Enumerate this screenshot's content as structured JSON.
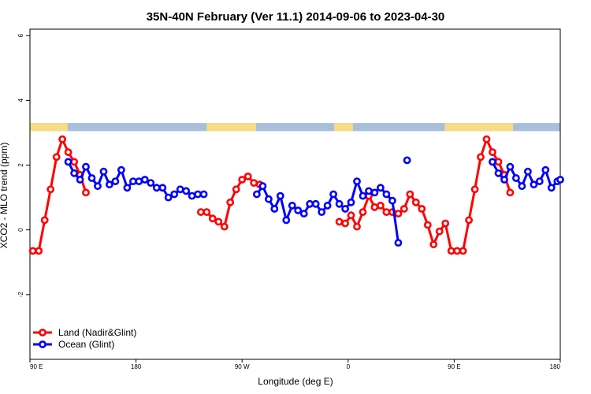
{
  "chart_data": {
    "type": "line",
    "title": "35N-40N February (Ver 11.1)   2014-09-06 to 2023-04-30",
    "xlabel": "Longitude (deg E)",
    "ylabel": "XCO2 - MLO trend (ppm)",
    "xlim": [
      90,
      540
    ],
    "ylim": [
      -4,
      6.2
    ],
    "x_ticks": [
      {
        "value": 90,
        "label": "90 E"
      },
      {
        "value": 180,
        "label": "180"
      },
      {
        "value": 270,
        "label": "90 W"
      },
      {
        "value": 360,
        "label": "0"
      },
      {
        "value": 450,
        "label": "90 E"
      },
      {
        "value": 540,
        "label": "180"
      }
    ],
    "y_ticks": [
      {
        "value": -2,
        "label": "-2"
      },
      {
        "value": 0,
        "label": "0"
      },
      {
        "value": 2,
        "label": "2"
      },
      {
        "value": 4,
        "label": "4"
      },
      {
        "value": 6,
        "label": "6"
      }
    ],
    "legend_position": "bottom-left",
    "land_ocean_strip": {
      "y_range": [
        3.05,
        3.3
      ],
      "land_color": "#f7dc84",
      "ocean_color": "#a7bedd",
      "land_segments": [
        [
          90,
          122
        ],
        [
          240,
          282
        ],
        [
          348,
          364
        ],
        [
          442,
          500
        ]
      ]
    },
    "series": [
      {
        "name": "Land (Nadir&Glint)",
        "color": "#ff0000",
        "segments": [
          [
            [
              92.5,
              -0.65
            ],
            [
              97.5,
              -0.65
            ],
            [
              102.5,
              0.3
            ],
            [
              107.5,
              1.25
            ],
            [
              112.5,
              2.25
            ],
            [
              117.5,
              2.8
            ],
            [
              122.5,
              2.4
            ],
            [
              127.5,
              2.1
            ],
            [
              132.5,
              1.7
            ],
            [
              137.5,
              1.15
            ]
          ],
          [
            [
              235,
              0.55
            ],
            [
              240,
              0.55
            ],
            [
              245,
              0.35
            ],
            [
              250,
              0.25
            ],
            [
              255,
              0.1
            ],
            [
              260,
              0.85
            ],
            [
              265,
              1.25
            ],
            [
              270,
              1.55
            ],
            [
              275,
              1.65
            ],
            [
              280,
              1.45
            ],
            [
              285,
              1.4
            ]
          ],
          [
            [
              352.5,
              0.25
            ],
            [
              357.5,
              0.2
            ],
            [
              362.5,
              0.45
            ],
            [
              367.5,
              0.1
            ],
            [
              372.5,
              0.55
            ],
            [
              377.5,
              1.05
            ],
            [
              382.5,
              0.7
            ],
            [
              387.5,
              0.75
            ],
            [
              392.5,
              0.55
            ],
            [
              397.5,
              0.55
            ],
            [
              402.5,
              0.5
            ],
            [
              407.5,
              0.65
            ],
            [
              412.5,
              1.1
            ],
            [
              417.5,
              0.85
            ],
            [
              422.5,
              0.65
            ],
            [
              427.5,
              0.15
            ],
            [
              432.5,
              -0.45
            ],
            [
              437.5,
              -0.05
            ],
            [
              442.5,
              0.2
            ],
            [
              447.5,
              -0.65
            ],
            [
              452.5,
              -0.65
            ],
            [
              457.5,
              -0.65
            ],
            [
              462.5,
              0.3
            ],
            [
              467.5,
              1.25
            ],
            [
              472.5,
              2.25
            ],
            [
              477.5,
              2.8
            ],
            [
              482.5,
              2.4
            ],
            [
              487.5,
              2.1
            ],
            [
              492.5,
              1.7
            ],
            [
              497.5,
              1.15
            ]
          ]
        ]
      },
      {
        "name": "Ocean (Glint)",
        "color": "#0000ff",
        "segments": [
          [
            [
              122.5,
              2.1
            ],
            [
              127.5,
              1.75
            ],
            [
              132.5,
              1.55
            ],
            [
              137.5,
              1.95
            ],
            [
              142.5,
              1.6
            ],
            [
              147.5,
              1.35
            ],
            [
              152.5,
              1.8
            ],
            [
              157.5,
              1.4
            ],
            [
              162.5,
              1.5
            ],
            [
              167.5,
              1.85
            ],
            [
              172.5,
              1.3
            ],
            [
              177.5,
              1.5
            ],
            [
              182.5,
              1.5
            ],
            [
              187.5,
              1.55
            ],
            [
              192.5,
              1.45
            ],
            [
              197.5,
              1.3
            ],
            [
              202.5,
              1.3
            ],
            [
              207.5,
              1.0
            ],
            [
              212.5,
              1.1
            ],
            [
              217.5,
              1.25
            ],
            [
              222.5,
              1.2
            ],
            [
              227.5,
              1.05
            ],
            [
              232.5,
              1.1
            ],
            [
              237.5,
              1.1
            ]
          ],
          [
            [
              282.5,
              1.1
            ],
            [
              287.5,
              1.35
            ],
            [
              292.5,
              0.95
            ],
            [
              297.5,
              0.65
            ],
            [
              302.5,
              1.05
            ],
            [
              307.5,
              0.3
            ],
            [
              312.5,
              0.75
            ],
            [
              317.5,
              0.6
            ],
            [
              322.5,
              0.5
            ],
            [
              327.5,
              0.8
            ],
            [
              332.5,
              0.8
            ],
            [
              337.5,
              0.55
            ],
            [
              342.5,
              0.75
            ],
            [
              347.5,
              1.1
            ],
            [
              352.5,
              0.8
            ],
            [
              357.5,
              0.65
            ],
            [
              362.5,
              0.85
            ],
            [
              367.5,
              1.5
            ],
            [
              372.5,
              1.05
            ],
            [
              377.5,
              1.2
            ],
            [
              382.5,
              1.15
            ],
            [
              387.5,
              1.3
            ],
            [
              392.5,
              1.1
            ],
            [
              397.5,
              0.9
            ],
            [
              402.5,
              -0.4
            ]
          ],
          [
            [
              410,
              2.15
            ]
          ],
          [
            [
              482.5,
              2.1
            ],
            [
              487.5,
              1.75
            ],
            [
              492.5,
              1.55
            ],
            [
              497.5,
              1.95
            ],
            [
              502.5,
              1.6
            ],
            [
              507.5,
              1.35
            ],
            [
              512.5,
              1.8
            ],
            [
              517.5,
              1.4
            ],
            [
              522.5,
              1.5
            ],
            [
              527.5,
              1.85
            ],
            [
              532.5,
              1.3
            ],
            [
              537.5,
              1.5
            ],
            [
              540,
              1.55
            ]
          ]
        ]
      }
    ]
  }
}
